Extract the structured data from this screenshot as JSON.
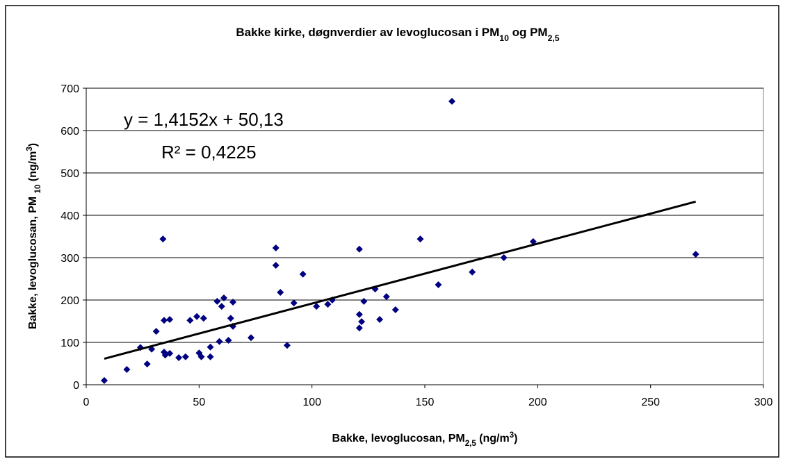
{
  "chart_data": {
    "type": "scatter",
    "title": [
      {
        "text": "Bakke kirke, døgnverdier av levoglucosan i PM"
      },
      {
        "text": "10",
        "baseline": "sub"
      },
      {
        "text": " og PM"
      },
      {
        "text": "2,5",
        "baseline": "sub"
      }
    ],
    "x_label": [
      {
        "text": "Bakke, levoglucosan, PM"
      },
      {
        "text": "2,5",
        "baseline": "sub"
      },
      {
        "text": " (ng/m"
      },
      {
        "text": "3",
        "baseline": "super"
      },
      {
        "text": ")"
      }
    ],
    "y_label": [
      {
        "text": "Bakke, levoglucosan, PM "
      },
      {
        "text": "10",
        "baseline": "sub"
      },
      {
        "text": " (ng/m"
      },
      {
        "text": "3",
        "baseline": "super"
      },
      {
        "text": ")"
      }
    ],
    "color": "#000080",
    "x": [
      8,
      18,
      24,
      27,
      29,
      31,
      34,
      34.5,
      34.5,
      35,
      37,
      37,
      41,
      44,
      46,
      49,
      50,
      51,
      52,
      55,
      55,
      58,
      59,
      60,
      61,
      63,
      64,
      65,
      65,
      73,
      84,
      84,
      86,
      89,
      92,
      96,
      102,
      107,
      109,
      121,
      121,
      121,
      122,
      123,
      128,
      130,
      133,
      137,
      148,
      156,
      162,
      171,
      185,
      198,
      270
    ],
    "values": [
      10,
      36,
      88,
      49,
      84,
      126,
      344,
      152,
      77,
      70,
      74,
      154,
      64,
      66,
      152,
      161,
      75,
      66,
      157,
      89,
      66,
      197,
      102,
      185,
      205,
      105,
      157,
      195,
      138,
      111,
      323,
      282,
      218,
      93,
      193,
      261,
      185,
      190,
      200,
      320,
      166,
      134,
      149,
      197,
      226,
      154,
      208,
      177,
      344,
      236,
      669,
      266,
      300,
      338,
      308
    ],
    "trendline": {
      "slope": 1.4152,
      "intercept": 50.13,
      "label": "y = 1,4152x + 50,13",
      "r2": 0.4225,
      "r2_label": "R² = 0,4225",
      "color": "#000000"
    },
    "xlim": [
      0,
      300
    ],
    "xticks": [
      0,
      50,
      100,
      150,
      200,
      250,
      300
    ],
    "ylim": [
      0,
      700
    ],
    "yticks": [
      0,
      100,
      200,
      300,
      400,
      500,
      600,
      700
    ],
    "grid": true
  }
}
